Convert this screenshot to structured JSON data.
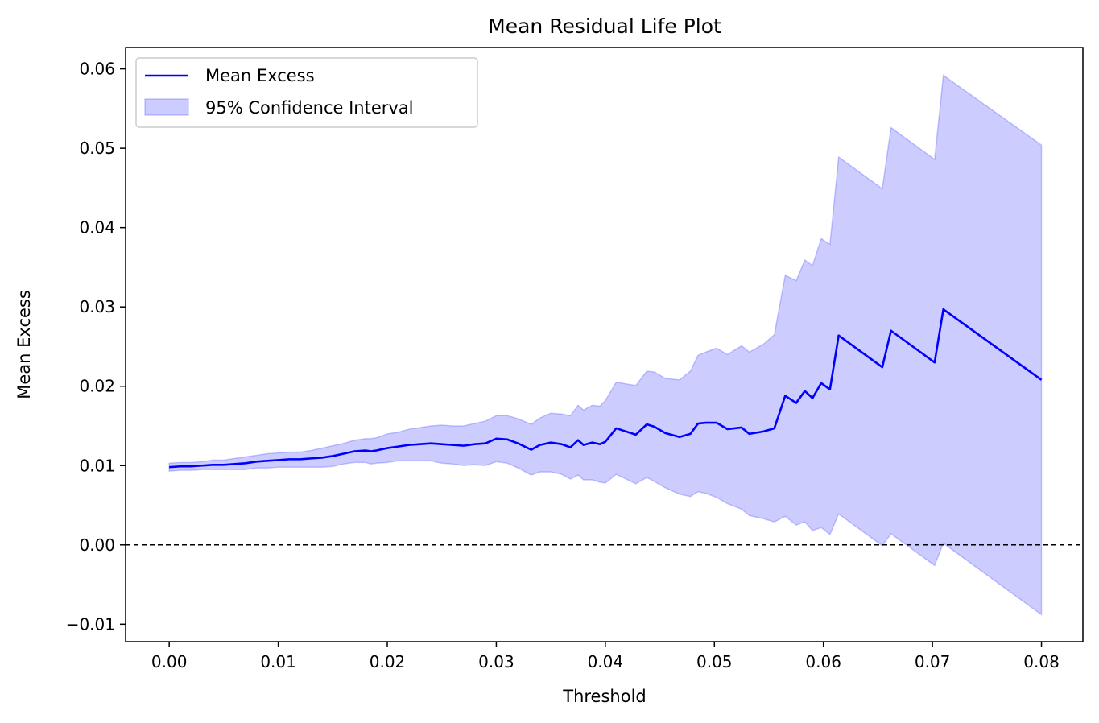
{
  "chart_data": {
    "type": "line",
    "title": "Mean Residual Life Plot",
    "xlabel": "Threshold",
    "ylabel": "Mean Excess",
    "xlim": [
      -0.004,
      0.0838
    ],
    "ylim": [
      -0.0122,
      0.0627
    ],
    "xticks": [
      0.0,
      0.01,
      0.02,
      0.03,
      0.04,
      0.05,
      0.06,
      0.07,
      0.08
    ],
    "xtick_labels": [
      "0.00",
      "0.01",
      "0.02",
      "0.03",
      "0.04",
      "0.05",
      "0.06",
      "0.07",
      "0.08"
    ],
    "yticks": [
      -0.01,
      0.0,
      0.01,
      0.02,
      0.03,
      0.04,
      0.05,
      0.06
    ],
    "ytick_labels": [
      "−0.01",
      "0.00",
      "0.01",
      "0.02",
      "0.03",
      "0.04",
      "0.05",
      "0.06"
    ],
    "reference_line": {
      "y": 0.0,
      "style": "dashed",
      "color": "#000000"
    },
    "legend": {
      "position": "top-left"
    },
    "series": [
      {
        "name": "Mean Excess",
        "kind": "line",
        "color": "#0000ff",
        "x": [
          0.0,
          0.001,
          0.002,
          0.003,
          0.004,
          0.005,
          0.006,
          0.007,
          0.008,
          0.009,
          0.01,
          0.011,
          0.012,
          0.013,
          0.014,
          0.015,
          0.016,
          0.017,
          0.018,
          0.0185,
          0.019,
          0.02,
          0.021,
          0.022,
          0.023,
          0.024,
          0.025,
          0.026,
          0.027,
          0.028,
          0.029,
          0.03,
          0.031,
          0.032,
          0.0332,
          0.034,
          0.035,
          0.036,
          0.0368,
          0.0375,
          0.038,
          0.0388,
          0.0395,
          0.04,
          0.041,
          0.0428,
          0.0438,
          0.0445,
          0.0455,
          0.0468,
          0.0478,
          0.0485,
          0.0492,
          0.0502,
          0.0512,
          0.0525,
          0.0532,
          0.0545,
          0.0555,
          0.0565,
          0.0575,
          0.0583,
          0.059,
          0.0598,
          0.0606,
          0.0614,
          0.0654,
          0.0662,
          0.0702,
          0.071,
          0.08
        ],
        "y": [
          0.0098,
          0.0099,
          0.0099,
          0.01,
          0.0101,
          0.0101,
          0.0102,
          0.0103,
          0.0105,
          0.0106,
          0.0107,
          0.0108,
          0.0108,
          0.0109,
          0.011,
          0.0112,
          0.0115,
          0.0118,
          0.0119,
          0.0118,
          0.0119,
          0.0122,
          0.0124,
          0.0126,
          0.0127,
          0.0128,
          0.0127,
          0.0126,
          0.0125,
          0.0127,
          0.0128,
          0.0134,
          0.0133,
          0.0128,
          0.012,
          0.0126,
          0.0129,
          0.0127,
          0.0123,
          0.0132,
          0.0126,
          0.0129,
          0.0127,
          0.013,
          0.0147,
          0.0139,
          0.0152,
          0.0149,
          0.0141,
          0.0136,
          0.014,
          0.0153,
          0.0154,
          0.0154,
          0.0146,
          0.0148,
          0.014,
          0.0143,
          0.0147,
          0.0188,
          0.0179,
          0.0194,
          0.0185,
          0.0204,
          0.0196,
          0.0264,
          0.0224,
          0.027,
          0.023,
          0.0297,
          0.0208
        ]
      },
      {
        "name": "95% Confidence Interval",
        "kind": "band",
        "color": "#0000ff",
        "x": [
          0.0,
          0.001,
          0.002,
          0.003,
          0.004,
          0.005,
          0.006,
          0.007,
          0.008,
          0.009,
          0.01,
          0.011,
          0.012,
          0.013,
          0.014,
          0.015,
          0.016,
          0.017,
          0.018,
          0.0185,
          0.019,
          0.02,
          0.021,
          0.022,
          0.023,
          0.024,
          0.025,
          0.026,
          0.027,
          0.028,
          0.029,
          0.03,
          0.031,
          0.032,
          0.0332,
          0.034,
          0.035,
          0.036,
          0.0368,
          0.0375,
          0.038,
          0.0388,
          0.0395,
          0.04,
          0.041,
          0.0428,
          0.0438,
          0.0445,
          0.0455,
          0.0468,
          0.0478,
          0.0485,
          0.0492,
          0.0502,
          0.0512,
          0.0525,
          0.0532,
          0.0545,
          0.0555,
          0.0565,
          0.0575,
          0.0583,
          0.059,
          0.0598,
          0.0606,
          0.0614,
          0.0654,
          0.0662,
          0.0702,
          0.071,
          0.08
        ],
        "upper": [
          0.0103,
          0.0104,
          0.0104,
          0.0105,
          0.0107,
          0.0107,
          0.0109,
          0.0111,
          0.0113,
          0.0115,
          0.0116,
          0.0117,
          0.0117,
          0.0119,
          0.0122,
          0.0125,
          0.0128,
          0.0132,
          0.0134,
          0.0134,
          0.0135,
          0.014,
          0.0142,
          0.0146,
          0.0148,
          0.015,
          0.0151,
          0.015,
          0.015,
          0.0153,
          0.0156,
          0.0163,
          0.0163,
          0.0159,
          0.0152,
          0.016,
          0.0166,
          0.0165,
          0.0163,
          0.0176,
          0.017,
          0.0176,
          0.0175,
          0.0182,
          0.0205,
          0.0201,
          0.0219,
          0.0218,
          0.021,
          0.0208,
          0.0219,
          0.0239,
          0.0243,
          0.0248,
          0.024,
          0.0251,
          0.0243,
          0.0253,
          0.0265,
          0.034,
          0.0333,
          0.0359,
          0.0352,
          0.0386,
          0.0379,
          0.0489,
          0.0449,
          0.0526,
          0.0486,
          0.0592,
          0.0504
        ],
        "lower": [
          0.0093,
          0.0094,
          0.0094,
          0.0095,
          0.0095,
          0.0095,
          0.0095,
          0.0095,
          0.0097,
          0.0097,
          0.0098,
          0.0098,
          0.0098,
          0.0098,
          0.0098,
          0.0099,
          0.0102,
          0.0104,
          0.0104,
          0.0102,
          0.0103,
          0.0104,
          0.0106,
          0.0106,
          0.0106,
          0.0106,
          0.0103,
          0.0102,
          0.01,
          0.0101,
          0.01,
          0.0105,
          0.0103,
          0.0097,
          0.0088,
          0.0092,
          0.0092,
          0.0089,
          0.0083,
          0.0088,
          0.0082,
          0.0082,
          0.0079,
          0.0078,
          0.0089,
          0.0077,
          0.0085,
          0.008,
          0.0072,
          0.0064,
          0.0061,
          0.0067,
          0.0065,
          0.006,
          0.0052,
          0.0045,
          0.0037,
          0.0033,
          0.0029,
          0.0036,
          0.0025,
          0.0029,
          0.0018,
          0.0022,
          0.0013,
          0.0039,
          -0.0001,
          0.0014,
          -0.0026,
          0.0002,
          -0.0088
        ]
      }
    ]
  }
}
